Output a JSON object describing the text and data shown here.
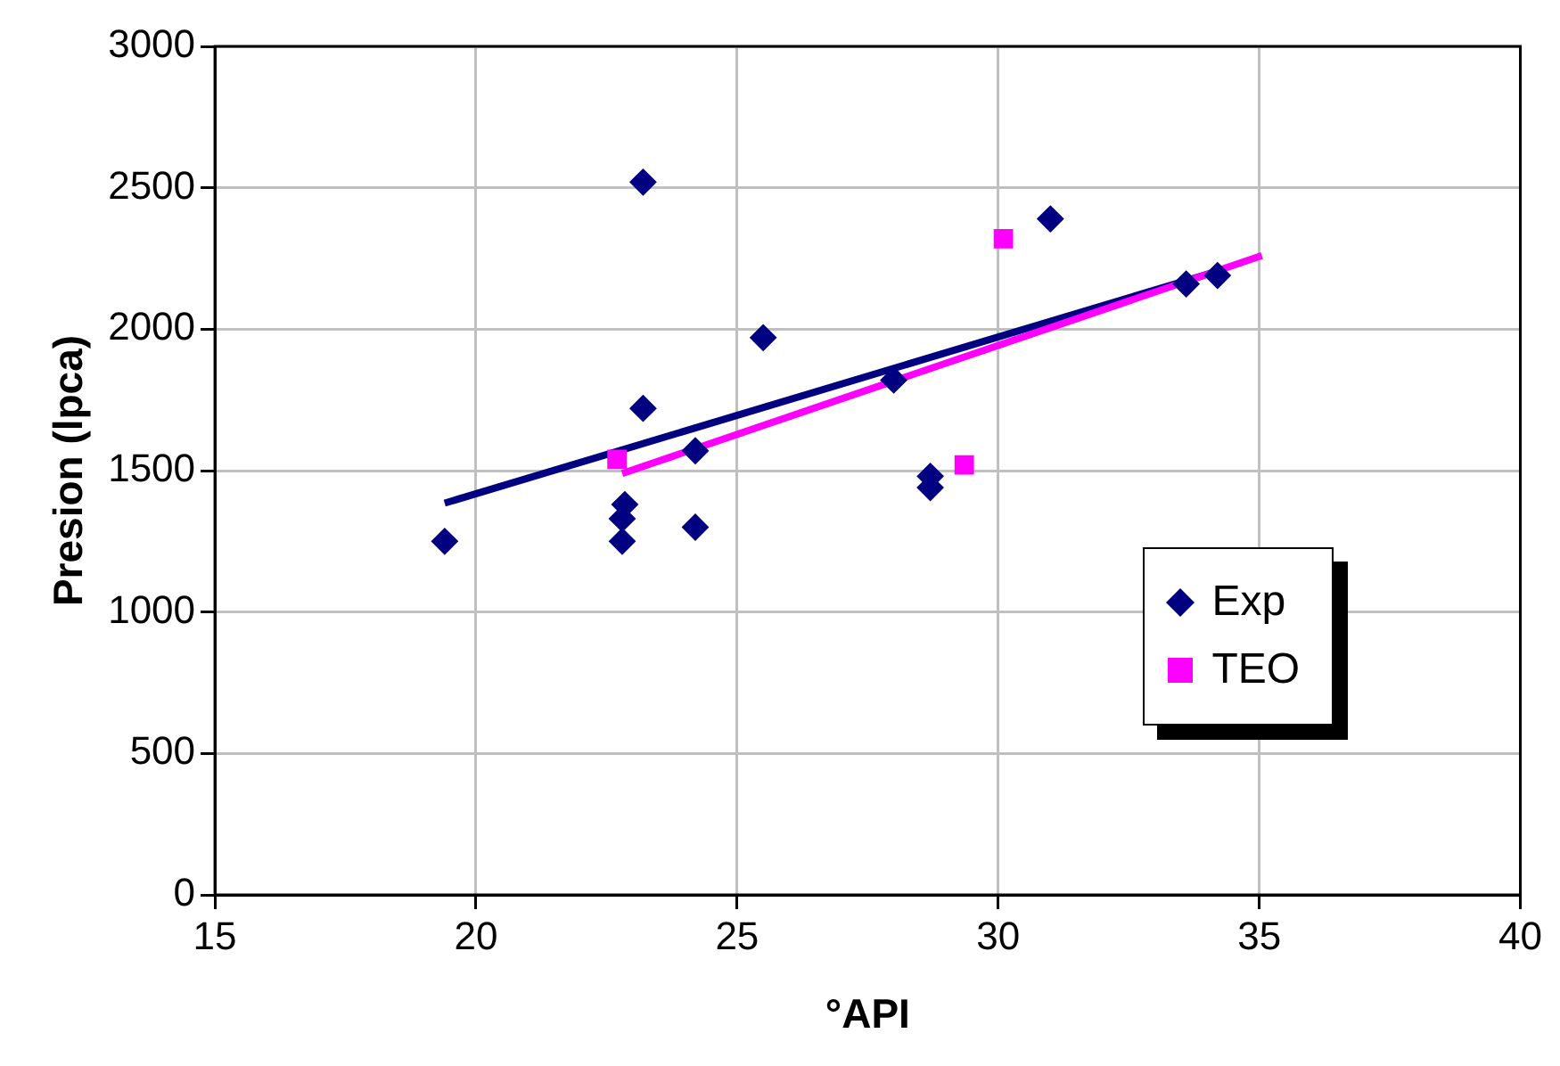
{
  "chart_data": {
    "type": "scatter",
    "xlabel": "°API",
    "ylabel": "Presion (lpca)",
    "xlim": [
      15,
      40
    ],
    "xticks": [
      15,
      20,
      25,
      30,
      35,
      40
    ],
    "ylim": [
      0,
      3000
    ],
    "yticks": [
      0,
      500,
      1000,
      1500,
      2000,
      2500,
      3000
    ],
    "grid": true,
    "legend": "bottom right",
    "series": [
      {
        "name": "Exp",
        "marker": "diamond",
        "color": "#000080",
        "x": [
          19.4,
          23.2,
          23.2,
          22.8,
          22.85,
          22.8,
          24.2,
          24.2,
          25.5,
          28.0,
          28.7,
          28.7,
          31.0,
          33.6,
          34.2
        ],
        "values": [
          1250,
          2520,
          1720,
          1330,
          1380,
          1250,
          1300,
          1570,
          1970,
          1820,
          1480,
          1440,
          2390,
          2160,
          2190
        ]
      },
      {
        "name": "TEO",
        "marker": "square",
        "color": "#ff00ff",
        "x": [
          22.7,
          29.35,
          30.1
        ],
        "values": [
          1540,
          1520,
          2320
        ]
      },
      {
        "type": "line",
        "marker": "none",
        "color": "#ff00ff",
        "x": [
          22.8,
          35.05
        ],
        "values": [
          1490,
          2260
        ]
      },
      {
        "type": "line",
        "marker": "none",
        "color": "#000080",
        "x": [
          19.4,
          34.2
        ],
        "values": [
          1385,
          2205
        ]
      }
    ]
  }
}
